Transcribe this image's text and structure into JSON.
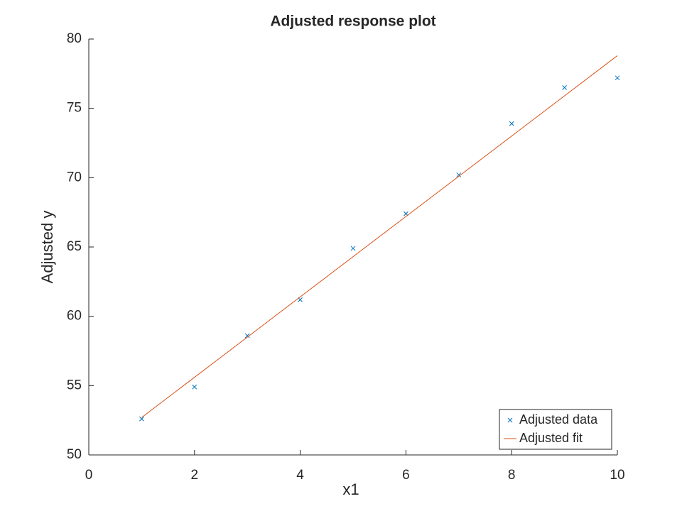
{
  "chart_data": {
    "type": "scatter",
    "title": "Adjusted response plot",
    "x_label": "x1",
    "y_label": "Adjusted y",
    "series": [
      {
        "name": "Adjusted data",
        "color": "#0072bd",
        "style": "marker",
        "x": [
          1,
          2,
          3,
          4,
          5,
          6,
          7,
          8,
          9,
          10
        ],
        "values": [
          52.6,
          54.9,
          58.6,
          61.2,
          64.9,
          67.4,
          70.2,
          73.9,
          76.5,
          77.2
        ]
      },
      {
        "name": "Adjusted fit",
        "color": "#d95319",
        "style": "line",
        "x": [
          1,
          10
        ],
        "values": [
          52.7,
          78.8
        ]
      }
    ],
    "xlim": [
      0,
      10
    ],
    "xticks": [
      0,
      2,
      4,
      6,
      8,
      10
    ],
    "ylim": [
      50,
      80
    ],
    "yticks": [
      50,
      55,
      60,
      65,
      70,
      75,
      80
    ],
    "grid": false,
    "legend_position": "lower right"
  }
}
